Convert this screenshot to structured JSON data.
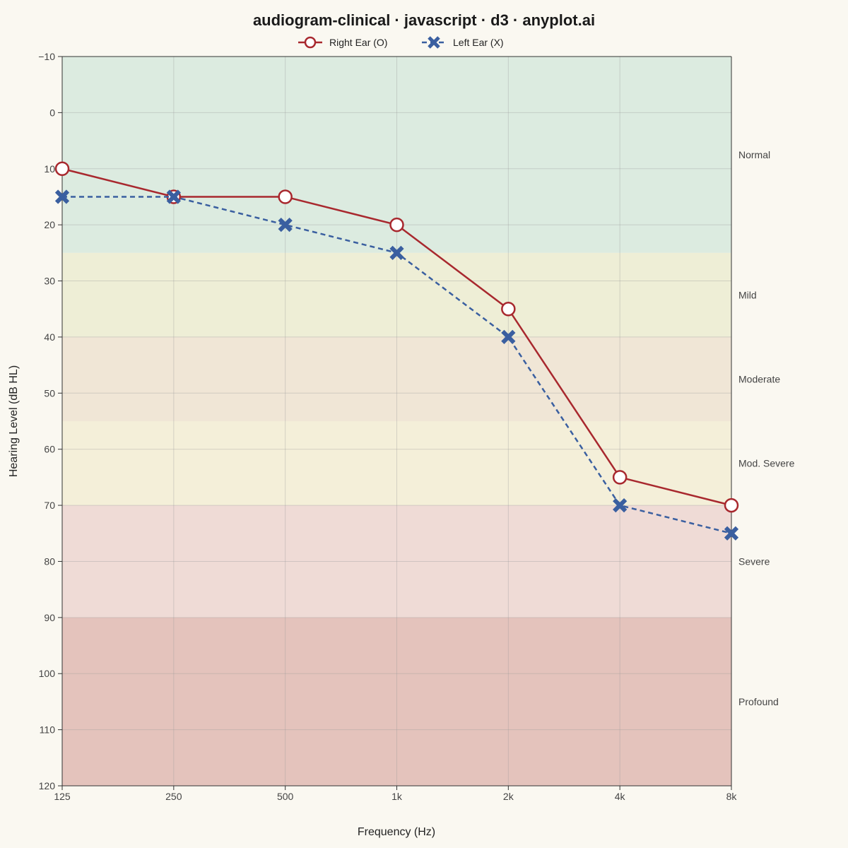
{
  "chart_data": {
    "type": "line",
    "title": "audiogram-clinical · javascript · d3 · anyplot.ai",
    "xlabel": "Frequency (Hz)",
    "ylabel": "Hearing Level (dB HL)",
    "x_scale": "log2",
    "categories": [
      "125",
      "250",
      "500",
      "1k",
      "2k",
      "4k",
      "8k"
    ],
    "x": [
      125,
      250,
      500,
      1000,
      2000,
      4000,
      8000
    ],
    "ylim": [
      -10,
      120
    ],
    "y_inverted": true,
    "y_ticks": [
      -10,
      0,
      10,
      20,
      30,
      40,
      50,
      60,
      70,
      80,
      90,
      100,
      110,
      120
    ],
    "grid": true,
    "legend_position": "top-center",
    "series": [
      {
        "name": "Right Ear (O)",
        "marker": "circle",
        "line": "solid",
        "color": "#A8282E",
        "values": [
          10,
          15,
          15,
          20,
          35,
          65,
          70
        ]
      },
      {
        "name": "Left Ear (X)",
        "marker": "cross",
        "line": "dashed",
        "color": "#3A5FA0",
        "values": [
          15,
          15,
          20,
          25,
          40,
          70,
          75
        ]
      }
    ],
    "severity_bands": [
      {
        "label": "Normal",
        "from": -10,
        "to": 25,
        "color": "#DCEBE0"
      },
      {
        "label": "Mild",
        "from": 25,
        "to": 40,
        "color": "#EEEED6"
      },
      {
        "label": "Moderate",
        "from": 40,
        "to": 55,
        "color": "#F0E6D6"
      },
      {
        "label": "Mod. Severe",
        "from": 55,
        "to": 70,
        "color": "#F4EFD9"
      },
      {
        "label": "Severe",
        "from": 70,
        "to": 90,
        "color": "#EFDBD6"
      },
      {
        "label": "Profound",
        "from": 90,
        "to": 120,
        "color": "#E4C3BC"
      }
    ]
  }
}
